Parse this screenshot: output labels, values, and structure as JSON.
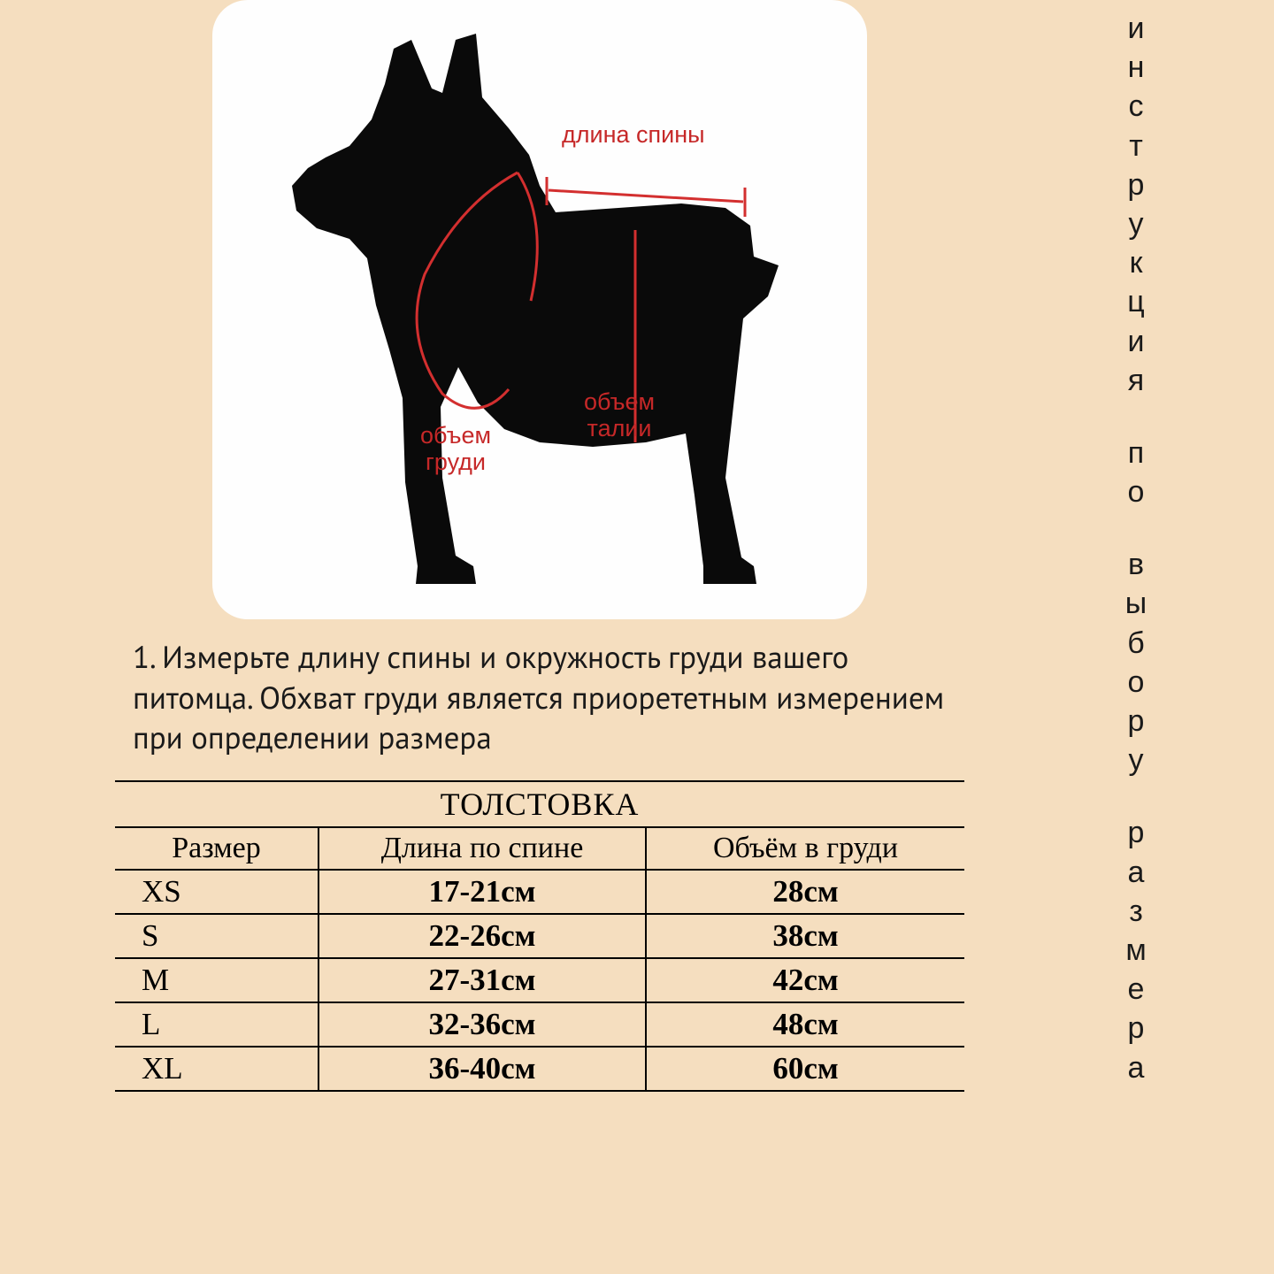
{
  "diagram": {
    "labels": {
      "back_length": "длина спины",
      "chest": "объем\nгруди",
      "waist": "объем\nталии"
    },
    "card_bg": "#fefefe",
    "card_radius": 40,
    "label_color": "#c62828",
    "line_color": "#d32f2f",
    "silhouette_color": "#0a0a0a"
  },
  "instruction": "1. Измерьте длину спины и окружность груди вашего питомца. Обхват груди является приорететным измерением при определении размера",
  "table": {
    "title": "ТОЛСТОВКА",
    "columns": [
      "Размер",
      "Длина по спине",
      "Объём в груди"
    ],
    "rows": [
      [
        "XS",
        "17-21см",
        "28см"
      ],
      [
        "S",
        "22-26см",
        "38см"
      ],
      [
        "M",
        "27-31см",
        "42см"
      ],
      [
        "L",
        "32-36см",
        "48см"
      ],
      [
        "XL",
        "36-40см",
        "60см"
      ]
    ],
    "border_color": "#000000",
    "header_fontsize": 34,
    "data_fontsize": 35,
    "bold_data": true
  },
  "vertical_title": "инструкция по выбору размера",
  "page_bg": "#f5debf",
  "text_color": "#1a1a1a"
}
